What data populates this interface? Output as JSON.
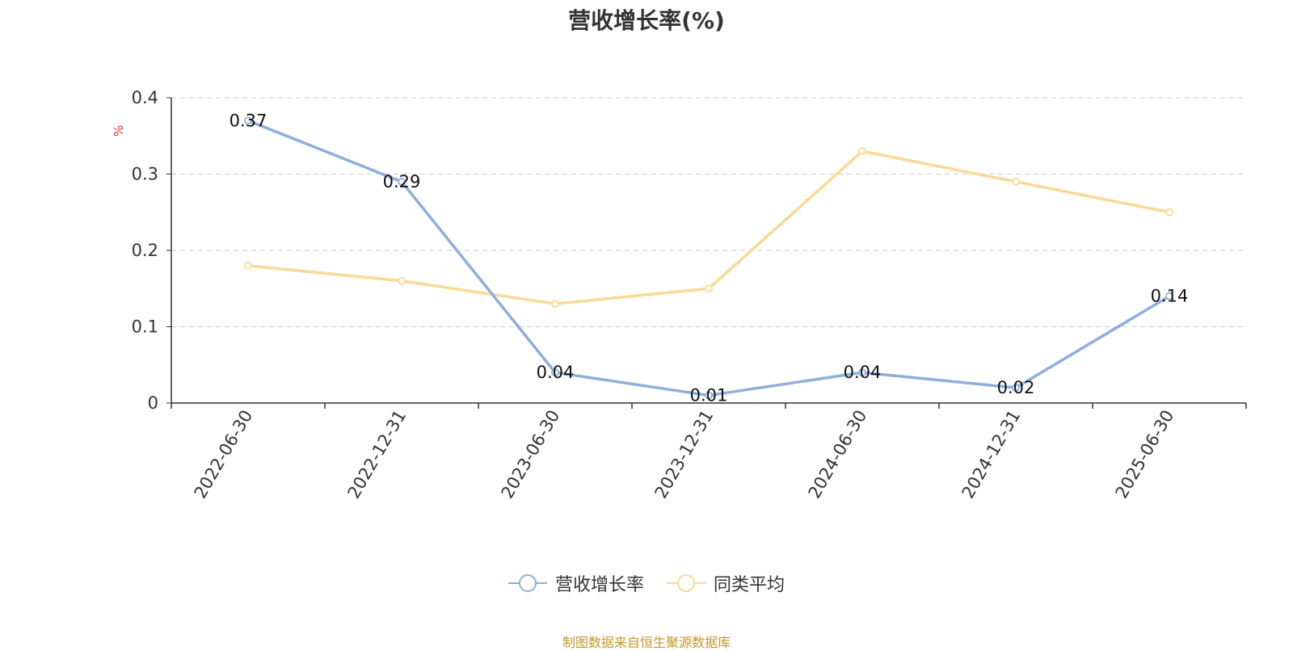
{
  "chart_data": {
    "type": "line",
    "title": "营收增长率(%)",
    "ylabel": "%",
    "xlabel": "",
    "categories": [
      "2022-06-30",
      "2022-12-31",
      "2023-06-30",
      "2023-12-31",
      "2024-06-30",
      "2024-12-31",
      "2025-06-30"
    ],
    "ylim": [
      0,
      0.4
    ],
    "yticks": [
      "0",
      "0.1",
      "0.2",
      "0.3",
      "0.4"
    ],
    "grid": true,
    "legend_position": "bottom",
    "series": [
      {
        "name": "营收增长率",
        "color": "#8eaedb",
        "values": [
          0.37,
          0.29,
          0.04,
          0.01,
          0.04,
          0.02,
          0.14
        ],
        "labels": [
          "0.37",
          "0.29",
          "0.04",
          "0.01",
          "0.04",
          "0.02",
          "0.14"
        ]
      },
      {
        "name": "同类平均",
        "color": "#f9d995",
        "values": [
          0.18,
          0.16,
          0.13,
          0.15,
          0.33,
          0.29,
          0.25
        ]
      }
    ]
  },
  "source_note": "制图数据来自恒生聚源数据库",
  "colors": {
    "axis": "#333333",
    "grid": "#cccccc",
    "ylabel": "#e03030",
    "source": "#c8952c"
  }
}
